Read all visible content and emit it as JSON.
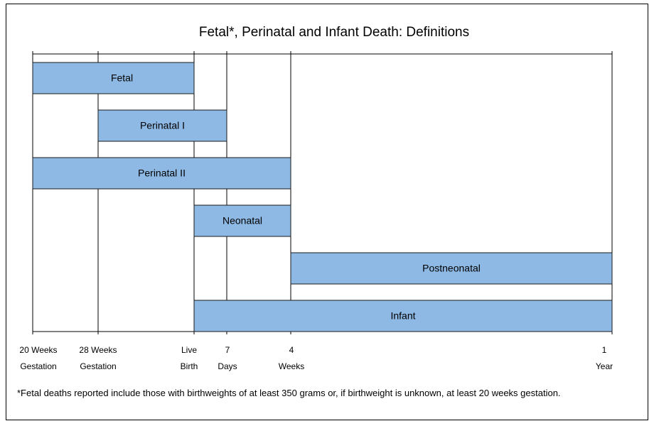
{
  "title": "Fetal*, Perinatal and Infant Death: Definitions",
  "bars": [
    {
      "label": "Fetal"
    },
    {
      "label": "Perinatal I"
    },
    {
      "label": "Perinatal II"
    },
    {
      "label": "Neonatal"
    },
    {
      "label": "Postneonatal"
    },
    {
      "label": "Infant"
    }
  ],
  "milestones": [
    {
      "lines": [
        "20 Weeks",
        "Gestation"
      ]
    },
    {
      "lines": [
        "28 Weeks",
        "Gestation"
      ]
    },
    {
      "lines": [
        "Live",
        "Birth"
      ]
    },
    {
      "lines": [
        "7",
        "Days"
      ]
    },
    {
      "lines": [
        "4",
        "Weeks"
      ]
    },
    {
      "lines": [
        "1",
        "Year"
      ]
    }
  ],
  "footnote": "*Fetal deaths reported include those with birthweights of at least 350 grams or, if birthweight is unknown, at least 20 weeks gestation."
}
